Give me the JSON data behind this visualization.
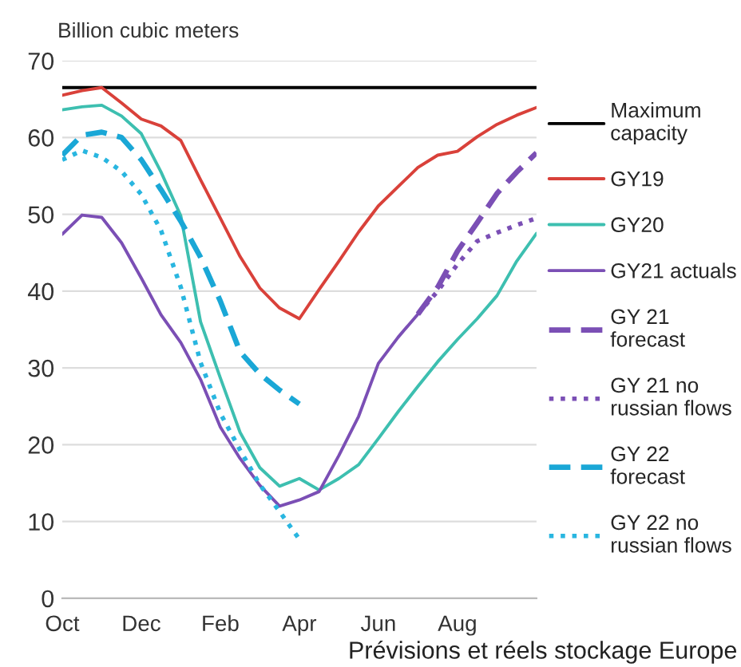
{
  "chart_data": {
    "type": "line",
    "ylabel": "Billion cubic meters",
    "annotations": [
      "Prévisions et réels stockage Europe"
    ],
    "categories": [
      "Oct",
      null,
      null,
      null,
      "Dec",
      null,
      null,
      null,
      "Feb",
      null,
      null,
      null,
      "Apr",
      null,
      null,
      null,
      "Jun",
      null,
      null,
      null,
      "Aug",
      null,
      null,
      null,
      null
    ],
    "ylim": [
      0,
      70
    ],
    "yticks": [
      0,
      10,
      20,
      30,
      40,
      50,
      60,
      70
    ],
    "grid": "y",
    "legend": "right",
    "series": [
      {
        "name": "Maximum capacity",
        "color": "#000000",
        "line_style": "solid",
        "values": [
          66.5,
          66.5,
          66.5,
          66.5,
          66.5,
          66.5,
          66.5,
          66.5,
          66.5,
          66.5,
          66.5,
          66.5,
          66.5,
          66.5,
          66.5,
          66.5,
          66.5,
          66.5,
          66.5,
          66.5,
          66.5,
          66.5,
          66.5,
          66.5,
          66.5
        ]
      },
      {
        "name": "GY19",
        "color": "#d9413a",
        "line_style": "solid",
        "values": [
          65.5,
          66.1,
          66.5,
          64.5,
          62.4,
          61.5,
          59.6,
          54.5,
          49.5,
          44.5,
          40.4,
          37.8,
          36.4,
          40.2,
          43.9,
          47.7,
          51.1,
          53.6,
          56.1,
          57.7,
          58.2,
          60.1,
          61.7,
          62.9,
          63.9
        ]
      },
      {
        "name": "GY20",
        "color": "#3dbfb0",
        "line_style": "solid",
        "values": [
          63.6,
          64,
          64.2,
          62.8,
          60.5,
          55.5,
          49.8,
          36,
          28.7,
          21.6,
          17,
          14.6,
          15.6,
          14.1,
          15.6,
          17.4,
          20.8,
          24.3,
          27.6,
          30.8,
          33.7,
          36.4,
          39.4,
          43.9,
          47.5
        ]
      },
      {
        "name": "GY21 actuals",
        "color": "#7b4fb5",
        "line_style": "solid",
        "values": [
          47.4,
          49.9,
          49.6,
          46.3,
          41.7,
          36.9,
          33.3,
          28.5,
          22.3,
          18.2,
          14.7,
          12,
          12.8,
          13.9,
          18.6,
          23.7,
          30.6,
          34,
          37,
          null,
          null,
          null,
          null,
          null,
          null
        ]
      },
      {
        "name": "GY 21 forecast",
        "color": "#7b4fb5",
        "line_style": "dashed",
        "values": [
          null,
          null,
          null,
          null,
          null,
          null,
          null,
          null,
          null,
          null,
          null,
          null,
          null,
          null,
          null,
          null,
          null,
          null,
          37,
          40.5,
          45.2,
          48.9,
          52.7,
          55.5,
          58
        ]
      },
      {
        "name": "GY 21 no russian flows",
        "color": "#7b4fb5",
        "line_style": "dotted",
        "values": [
          null,
          null,
          null,
          null,
          null,
          null,
          null,
          null,
          null,
          null,
          null,
          null,
          null,
          null,
          null,
          null,
          null,
          null,
          37,
          40,
          43.5,
          46.5,
          47.6,
          48.6,
          49.5
        ]
      },
      {
        "name": "GY 22 forecast",
        "color": "#1aa7d6",
        "line_style": "dashed",
        "values": [
          57.7,
          60.3,
          60.7,
          60,
          57.1,
          53.2,
          49.1,
          44.4,
          38.7,
          32.1,
          29.2,
          27.1,
          25.3,
          null,
          null,
          null,
          null,
          null,
          null,
          null,
          null,
          null,
          null,
          null,
          null
        ]
      },
      {
        "name": "GY 22 no russian flows",
        "color": "#29b6e0",
        "line_style": "dotted",
        "values": [
          57.1,
          58.3,
          57.4,
          55.6,
          52.6,
          47.9,
          40.5,
          30.7,
          24.1,
          19.3,
          14.8,
          11.3,
          7.7,
          null,
          null,
          null,
          null,
          null,
          null,
          null,
          null,
          null,
          null,
          null,
          null
        ]
      }
    ]
  }
}
